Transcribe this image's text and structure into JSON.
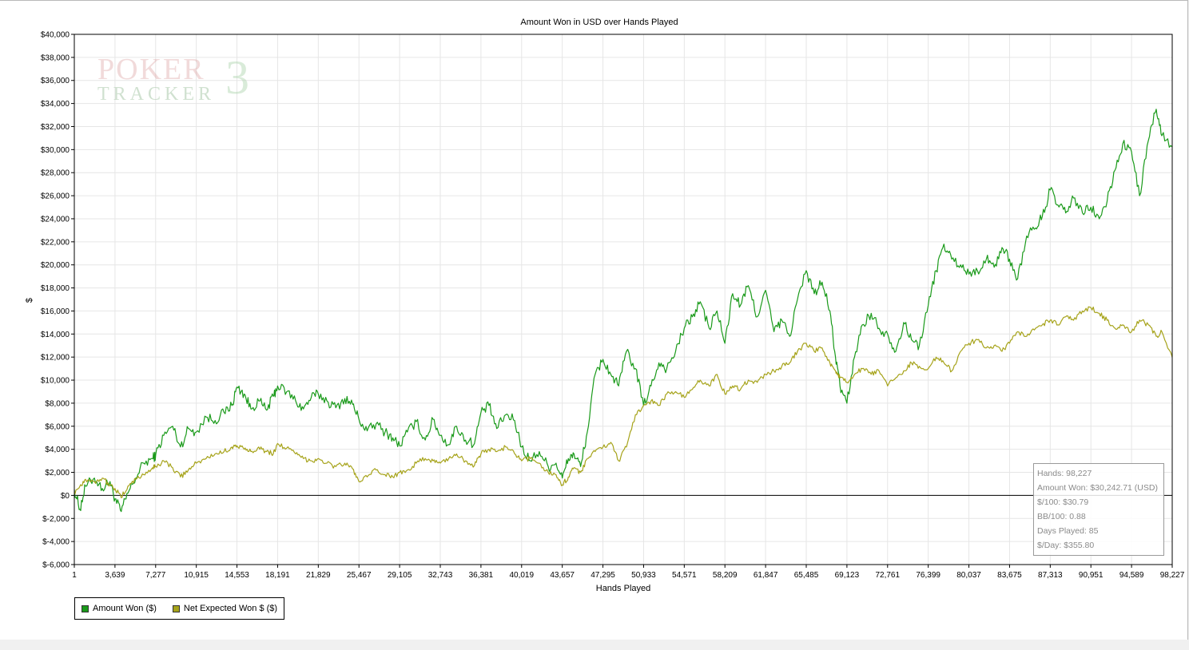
{
  "chart_data": {
    "type": "line",
    "title": "Amount Won in USD over Hands Played",
    "xlabel": "Hands Played",
    "ylabel": "$",
    "xlim": [
      1,
      98227
    ],
    "ylim": [
      -6000,
      40000
    ],
    "x_ticks": [
      "1",
      "3,639",
      "7,277",
      "10,915",
      "14,553",
      "18,191",
      "21,829",
      "25,467",
      "29,105",
      "32,743",
      "36,381",
      "40,019",
      "43,657",
      "47,295",
      "50,933",
      "54,571",
      "58,209",
      "61,847",
      "65,485",
      "69,123",
      "72,761",
      "76,399",
      "80,037",
      "83,675",
      "87,313",
      "90,951",
      "94,589",
      "98,227"
    ],
    "y_ticks": [
      "$40,000",
      "$38,000",
      "$36,000",
      "$34,000",
      "$32,000",
      "$30,000",
      "$28,000",
      "$26,000",
      "$24,000",
      "$22,000",
      "$20,000",
      "$18,000",
      "$16,000",
      "$14,000",
      "$12,000",
      "$10,000",
      "$8,000",
      "$6,000",
      "$4,000",
      "$2,000",
      "$0",
      "$-2,000",
      "$-4,000",
      "$-6,000"
    ],
    "grid": true,
    "legend_position": "bottom-left",
    "series": [
      {
        "name": "Amount Won ($)",
        "color": "#1a9a1a",
        "x": [
          1,
          500,
          1000,
          1800,
          2500,
          3200,
          3639,
          4200,
          4800,
          5500,
          6200,
          7000,
          7277,
          8000,
          8800,
          9500,
          10200,
          10915,
          11800,
          12600,
          13400,
          14100,
          14553,
          15200,
          15800,
          16500,
          17200,
          17800,
          18191,
          19000,
          19800,
          20500,
          21200,
          21829,
          22600,
          23400,
          24200,
          24900,
          25467,
          26200,
          27000,
          27800,
          28500,
          29105,
          29800,
          30600,
          31400,
          32100,
          32743,
          33500,
          34200,
          35000,
          35800,
          36381,
          37100,
          37800,
          38600,
          39400,
          40019,
          40800,
          41600,
          42400,
          43100,
          43657,
          44200,
          44700,
          45300,
          45900,
          46600,
          47295,
          48000,
          48700,
          49400,
          50200,
          50933,
          51600,
          52300,
          53000,
          53800,
          54571,
          55300,
          56000,
          56800,
          57500,
          58209,
          58900,
          59600,
          60300,
          61100,
          61847,
          62600,
          63300,
          64000,
          64700,
          65485,
          66200,
          66900,
          67600,
          68100,
          68500,
          69123,
          69800,
          70500,
          71300,
          72000,
          72761,
          73500,
          74200,
          74900,
          75600,
          76399,
          77100,
          77800,
          78500,
          79300,
          80037,
          80800,
          81600,
          82300,
          83000,
          83675,
          84400,
          85200,
          86000,
          86600,
          87313,
          88000,
          88700,
          89400,
          90200,
          90951,
          91700,
          92400,
          93100,
          93800,
          94589,
          95300,
          96100,
          96800,
          97300,
          98227
        ],
        "values": [
          500,
          -1200,
          800,
          1500,
          600,
          1200,
          -300,
          -1400,
          200,
          1500,
          2800,
          3200,
          3500,
          5200,
          6000,
          4200,
          5800,
          5500,
          6800,
          6500,
          7200,
          7800,
          9400,
          8800,
          7500,
          8200,
          7400,
          8600,
          9500,
          9000,
          8200,
          7500,
          8500,
          8800,
          8200,
          7600,
          8400,
          7900,
          6600,
          5600,
          6200,
          5500,
          5000,
          4300,
          5500,
          6400,
          4800,
          6600,
          5200,
          4400,
          6000,
          4800,
          4500,
          7200,
          7800,
          5800,
          7000,
          6500,
          4200,
          3000,
          3800,
          2500,
          2800,
          1500,
          3200,
          3600,
          2500,
          5500,
          10500,
          11800,
          10500,
          9500,
          12500,
          11000,
          7800,
          9500,
          11500,
          11000,
          12500,
          14500,
          15500,
          16800,
          14500,
          16000,
          13200,
          17500,
          16500,
          18200,
          15500,
          17800,
          14200,
          15200,
          13800,
          17000,
          19500,
          17500,
          18500,
          16000,
          12000,
          9500,
          8000,
          12000,
          14800,
          15800,
          14500,
          14000,
          12500,
          15000,
          13500,
          13000,
          16500,
          19500,
          21800,
          20500,
          20000,
          19200,
          19500,
          20500,
          19800,
          21500,
          20500,
          18800,
          22500,
          23200,
          24200,
          26500,
          25200,
          24500,
          25800,
          24500,
          25000,
          24000,
          25500,
          28200,
          30500,
          29800,
          26000,
          30800,
          33500,
          31200,
          30242
        ]
      },
      {
        "name": "Net Expected Won $ ($)",
        "color": "#a6a31a",
        "x": [
          1,
          500,
          1000,
          1800,
          2500,
          3200,
          3639,
          4200,
          4800,
          5500,
          6200,
          7000,
          7277,
          8000,
          8800,
          9500,
          10200,
          10915,
          11800,
          12600,
          13400,
          14100,
          14553,
          15200,
          15800,
          16500,
          17200,
          17800,
          18191,
          19000,
          19800,
          20500,
          21200,
          21829,
          22600,
          23400,
          24200,
          24900,
          25467,
          26200,
          27000,
          27800,
          28500,
          29105,
          29800,
          30600,
          31400,
          32100,
          32743,
          33500,
          34200,
          35000,
          35800,
          36381,
          37100,
          37800,
          38600,
          39400,
          40019,
          40800,
          41600,
          42400,
          43100,
          43657,
          44200,
          44700,
          45300,
          45900,
          46600,
          47295,
          48000,
          48700,
          49400,
          50200,
          50933,
          51600,
          52300,
          53000,
          53800,
          54571,
          55300,
          56000,
          56800,
          57500,
          58209,
          58900,
          59600,
          60300,
          61100,
          61847,
          62600,
          63300,
          64000,
          64700,
          65485,
          66200,
          66900,
          67600,
          68100,
          68500,
          69123,
          69800,
          70500,
          71300,
          72000,
          72761,
          73500,
          74200,
          74900,
          75600,
          76399,
          77100,
          77800,
          78500,
          79300,
          80037,
          80800,
          81600,
          82300,
          83000,
          83675,
          84400,
          85200,
          86000,
          86600,
          87313,
          88000,
          88700,
          89400,
          90200,
          90951,
          91700,
          92400,
          93100,
          93800,
          94589,
          95300,
          96100,
          96800,
          97300,
          98227
        ],
        "values": [
          300,
          800,
          1400,
          1200,
          1500,
          900,
          600,
          -200,
          800,
          1400,
          1800,
          2400,
          2500,
          3000,
          2400,
          1600,
          2200,
          2800,
          3200,
          3600,
          3800,
          4200,
          4300,
          4000,
          3800,
          4200,
          3800,
          3600,
          4500,
          4100,
          3600,
          3200,
          3000,
          3200,
          2800,
          2500,
          2800,
          2300,
          1200,
          1600,
          2200,
          1800,
          1600,
          2000,
          2200,
          2800,
          3200,
          3000,
          2800,
          3200,
          3600,
          3000,
          2600,
          3600,
          4000,
          3800,
          4200,
          3600,
          3000,
          3200,
          2800,
          2000,
          1800,
          900,
          1600,
          2400,
          2000,
          3200,
          3800,
          4200,
          4600,
          3000,
          4200,
          7000,
          7800,
          8200,
          7800,
          8800,
          9000,
          8500,
          9200,
          10000,
          9500,
          10500,
          8800,
          9500,
          9200,
          10000,
          9800,
          10500,
          10800,
          11200,
          11500,
          12500,
          13200,
          12500,
          12800,
          11500,
          10800,
          10200,
          9800,
          10500,
          11000,
          10500,
          10800,
          9500,
          10200,
          10800,
          11500,
          11200,
          11000,
          12000,
          11500,
          10800,
          12500,
          13200,
          13500,
          12800,
          13000,
          12500,
          13200,
          14200,
          13800,
          14500,
          14800,
          15200,
          14800,
          15500,
          15200,
          16000,
          16300,
          15800,
          15200,
          14500,
          14800,
          14200,
          15200,
          14800,
          13800,
          14200,
          12000
        ]
      }
    ]
  },
  "stats": {
    "hands": "Hands: 98,227",
    "amount_won": "Amount Won: $30,242.71 (USD)",
    "per_100": "$/100: $30.79",
    "bb_per_100": "BB/100: 0.88",
    "days_played": "Days Played: 85",
    "per_day": "$/Day: $355.80"
  },
  "watermark": {
    "line1": "POKER",
    "line2": "TRACKER",
    "digit": "3"
  }
}
